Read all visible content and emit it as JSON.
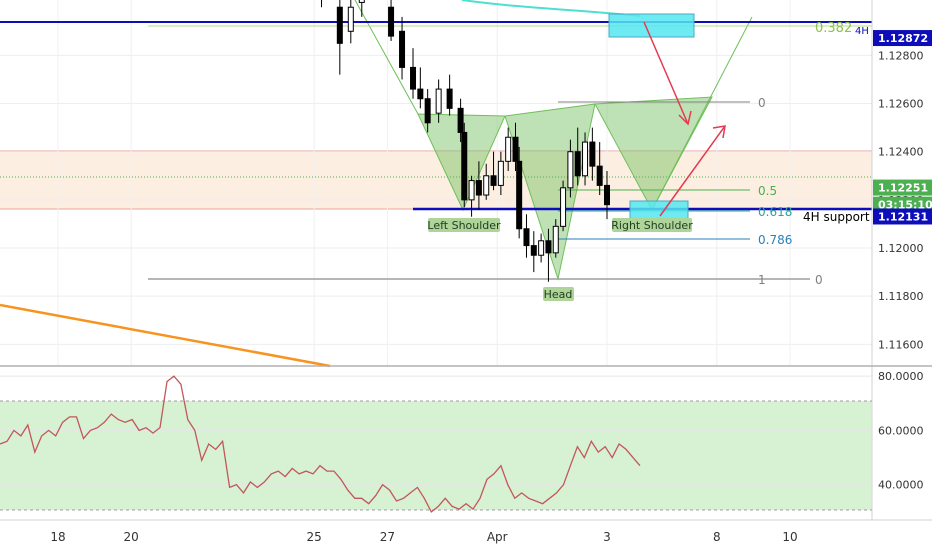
{
  "chart_data": [
    {
      "type": "candlestick",
      "title": "",
      "xlabel": "",
      "ylabel": "",
      "ylim": [
        1.1151,
        1.1303
      ],
      "x_ticks": [
        {
          "label": "18",
          "day": 18
        },
        {
          "label": "20",
          "day": 20
        },
        {
          "label": "25",
          "day": 25
        },
        {
          "label": "27",
          "day": 27
        },
        {
          "label": "Apr",
          "day": 30
        },
        {
          "label": "3",
          "day": 33
        },
        {
          "label": "8",
          "day": 36
        },
        {
          "label": "10",
          "day": 38
        }
      ],
      "y_ticks": [
        "1.12800",
        "1.12600",
        "1.12400",
        "1.12200",
        "1.12000",
        "1.11800",
        "1.11600"
      ],
      "price_labels": [
        {
          "text": "1.12872",
          "value": 1.12872,
          "color": "#0d0dba"
        },
        {
          "text": "1.12251",
          "value": 1.12251,
          "color": "#4caf50"
        },
        {
          "text": "03:15:10",
          "value": 1.1218,
          "color": "#4caf50"
        },
        {
          "text": "1.12131",
          "value": 1.12131,
          "color": "#0d0dba"
        }
      ],
      "candles": [
        [
          25.2,
          1.1306,
          1.131,
          1.13,
          1.1304
        ],
        [
          25.7,
          1.13,
          1.1306,
          1.1272,
          1.1285
        ],
        [
          26.0,
          1.129,
          1.1305,
          1.1285,
          1.13
        ],
        [
          26.3,
          1.1302,
          1.1308,
          1.1296,
          1.1305
        ],
        [
          27.1,
          1.13,
          1.1304,
          1.1286,
          1.1288
        ],
        [
          27.4,
          1.129,
          1.1296,
          1.127,
          1.1275
        ],
        [
          27.7,
          1.1275,
          1.1283,
          1.1262,
          1.1266
        ],
        [
          27.9,
          1.1266,
          1.1275,
          1.1258,
          1.1262
        ],
        [
          28.1,
          1.1262,
          1.1266,
          1.1248,
          1.1252
        ],
        [
          28.4,
          1.1256,
          1.127,
          1.1252,
          1.1266
        ],
        [
          28.7,
          1.1266,
          1.1272,
          1.1255,
          1.1258
        ],
        [
          29.0,
          1.1258,
          1.1262,
          1.1244,
          1.1248
        ],
        [
          29.1,
          1.1248,
          1.1252,
          1.1217,
          1.122
        ],
        [
          29.3,
          1.122,
          1.123,
          1.1213,
          1.1228
        ],
        [
          29.5,
          1.1228,
          1.1236,
          1.1216,
          1.1222
        ],
        [
          29.7,
          1.1222,
          1.1235,
          1.122,
          1.123
        ],
        [
          29.9,
          1.123,
          1.124,
          1.1224,
          1.1226
        ],
        [
          30.1,
          1.1226,
          1.124,
          1.1222,
          1.1236
        ],
        [
          30.3,
          1.1236,
          1.125,
          1.1232,
          1.1246
        ],
        [
          30.5,
          1.1246,
          1.1252,
          1.1232,
          1.1236
        ],
        [
          30.6,
          1.1236,
          1.1242,
          1.1204,
          1.1208
        ],
        [
          30.8,
          1.1208,
          1.1214,
          1.1196,
          1.1201
        ],
        [
          31.0,
          1.1201,
          1.1207,
          1.119,
          1.1197
        ],
        [
          31.2,
          1.1197,
          1.1206,
          1.1194,
          1.1203
        ],
        [
          31.4,
          1.1203,
          1.1208,
          1.1186,
          1.1198
        ],
        [
          31.6,
          1.1198,
          1.1212,
          1.1196,
          1.1209
        ],
        [
          31.8,
          1.1209,
          1.1228,
          1.1207,
          1.1225
        ],
        [
          32.0,
          1.1225,
          1.1245,
          1.1221,
          1.124
        ],
        [
          32.2,
          1.124,
          1.125,
          1.1226,
          1.123
        ],
        [
          32.4,
          1.123,
          1.1248,
          1.1226,
          1.1244
        ],
        [
          32.6,
          1.1244,
          1.125,
          1.1228,
          1.1234
        ],
        [
          32.8,
          1.1234,
          1.1244,
          1.1222,
          1.1226
        ],
        [
          33.0,
          1.1226,
          1.1232,
          1.1212,
          1.1218
        ]
      ],
      "lines": [
        {
          "name": "resistance",
          "value": 1.12872,
          "color": "#0d0dba"
        },
        {
          "name": "support",
          "value": 1.12131,
          "color": "#0d0dba"
        },
        {
          "name": "fib-0",
          "value": 1.1256,
          "color": "#808080"
        },
        {
          "name": "fib-05",
          "value": 1.1218,
          "color": "#4caf50"
        },
        {
          "name": "fib-0786",
          "value": 1.12,
          "color": "#2a7fb8"
        },
        {
          "name": "fib-1",
          "value": 1.1185,
          "color": "#808080"
        }
      ],
      "annotations": [
        {
          "text": "0.382",
          "color": "#8bc34a"
        },
        {
          "text": "4H",
          "color": "#0d0dba"
        },
        {
          "text": "0",
          "color": "#808080"
        },
        {
          "text": "0.5",
          "color": "#4caf50"
        },
        {
          "text": "0.618",
          "color": "#26a69a"
        },
        {
          "text": "0.786",
          "color": "#2a7fb8"
        },
        {
          "text": "1",
          "color": "#808080"
        },
        {
          "text": "0",
          "color": "#808080"
        },
        {
          "text": "4H support",
          "color": "#000000"
        },
        {
          "text": "Left Shoulder",
          "color": "#1e3d1e"
        },
        {
          "text": "Head",
          "color": "#1e3d1e"
        },
        {
          "text": "Right Shoulder",
          "color": "#1e3d1e"
        }
      ],
      "grid": true,
      "legend": "none"
    },
    {
      "type": "line",
      "title": "",
      "xlabel": "",
      "ylabel": "",
      "ylim": [
        27,
        83
      ],
      "y_ticks": [
        "80.0000",
        "60.0000",
        "40.0000"
      ],
      "bands": [
        30,
        70
      ],
      "series": [
        {
          "color": "#c2575a",
          "values": [
            55,
            56,
            60,
            58,
            62,
            52,
            58,
            60,
            58,
            63,
            65,
            65,
            57,
            60,
            61,
            63,
            66,
            64,
            63,
            64,
            60,
            61,
            59,
            61,
            78,
            80,
            77,
            64,
            60,
            49,
            55,
            53,
            56,
            39,
            40,
            37,
            41,
            39,
            41,
            44,
            45,
            43,
            46,
            44,
            45,
            44,
            47,
            45,
            45,
            42,
            38,
            35,
            35,
            33,
            36,
            40,
            38,
            34,
            35,
            37,
            39,
            35,
            30,
            32,
            35,
            32,
            31,
            33,
            31,
            35,
            42,
            44,
            47,
            40,
            35,
            37,
            35,
            34,
            33,
            35,
            37,
            40,
            47,
            54,
            50,
            56,
            52,
            54,
            50,
            55,
            53,
            50,
            47
          ]
        }
      ]
    }
  ]
}
